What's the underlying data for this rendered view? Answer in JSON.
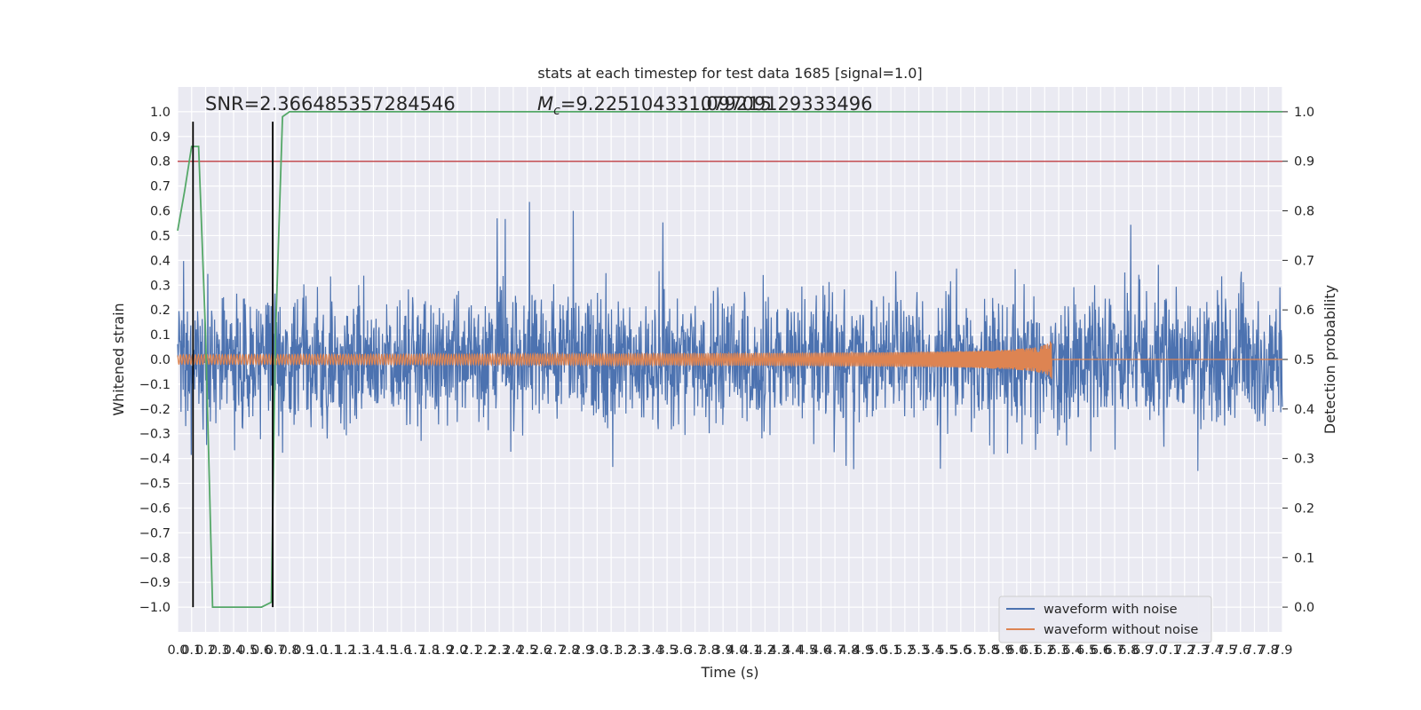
{
  "chart_data": {
    "type": "line",
    "title": "stats at each timestep for test data 1685 [signal=1.0]",
    "xlabel": "Time (s)",
    "ylabel": "Whitened strain",
    "y2label": "Detection probability",
    "xlim": [
      0.0,
      7.9
    ],
    "ylim": [
      -1.1,
      1.1
    ],
    "y2lim": [
      -0.05,
      1.05
    ],
    "x_ticks": [
      "0.0",
      "0.1",
      "0.2",
      "0.3",
      "0.4",
      "0.5",
      "0.6",
      "0.7",
      "0.8",
      "0.9",
      "1.0",
      "1.1",
      "1.2",
      "1.3",
      "1.4",
      "1.5",
      "1.6",
      "1.7",
      "1.8",
      "1.9",
      "2.0",
      "2.1",
      "2.2",
      "2.3",
      "2.4",
      "2.5",
      "2.6",
      "2.7",
      "2.8",
      "2.9",
      "3.0",
      "3.1",
      "3.2",
      "3.3",
      "3.4",
      "3.5",
      "3.6",
      "3.7",
      "3.8",
      "3.9",
      "4.0",
      "4.1",
      "4.2",
      "4.3",
      "4.4",
      "4.5",
      "4.6",
      "4.7",
      "4.8",
      "4.9",
      "5.0",
      "5.1",
      "5.2",
      "5.3",
      "5.4",
      "5.5",
      "5.6",
      "5.7",
      "5.8",
      "5.9",
      "6.0",
      "6.1",
      "6.2",
      "6.3",
      "6.4",
      "6.5",
      "6.6",
      "6.7",
      "6.8",
      "6.9",
      "7.0",
      "7.1",
      "7.2",
      "7.3",
      "7.4",
      "7.5",
      "7.6",
      "7.7",
      "7.8",
      "7.9"
    ],
    "y_ticks": [
      "1.0",
      "0.9",
      "0.8",
      "0.7",
      "0.6",
      "0.5",
      "0.4",
      "0.3",
      "0.2",
      "0.1",
      "0.0",
      "−0.1",
      "−0.2",
      "−0.3",
      "−0.4",
      "−0.5",
      "−0.6",
      "−0.7",
      "−0.8",
      "−0.9",
      "−1.0"
    ],
    "y2_ticks": [
      "1.0",
      "0.9",
      "0.8",
      "0.7",
      "0.6",
      "0.5",
      "0.4",
      "0.3",
      "0.2",
      "0.1",
      "0.0"
    ],
    "annotations": {
      "snr": "SNR=2.366485357284546",
      "mc_prefix": "M",
      "mc_sub": "c",
      "mc_value": "=9.225104331079215",
      "mc_overlap": "31.09709129333496"
    },
    "series": [
      {
        "name": "waveform with noise",
        "color": "#4c72b0",
        "noise_peak_abs": 1.0
      },
      {
        "name": "waveform without noise",
        "color": "#dd8452",
        "chirp_end_time": 6.25,
        "chirp_peak": 0.09
      }
    ],
    "detection_probability": {
      "color": "#55a868",
      "points": [
        [
          0.0,
          0.76
        ],
        [
          0.05,
          0.84
        ],
        [
          0.1,
          0.93
        ],
        [
          0.15,
          0.93
        ],
        [
          0.2,
          0.55
        ],
        [
          0.25,
          0.0
        ],
        [
          0.3,
          0.0
        ],
        [
          0.5,
          0.0
        ],
        [
          0.6,
          0.0
        ],
        [
          0.67,
          0.01
        ],
        [
          0.7,
          0.55
        ],
        [
          0.75,
          0.99
        ],
        [
          0.8,
          1.0
        ],
        [
          7.9,
          1.0
        ]
      ]
    },
    "threshold": {
      "value": 0.9,
      "color": "#c44e52"
    },
    "vlines": [
      0.11,
      0.68
    ],
    "legend_position": "lower-right",
    "grid": true
  }
}
